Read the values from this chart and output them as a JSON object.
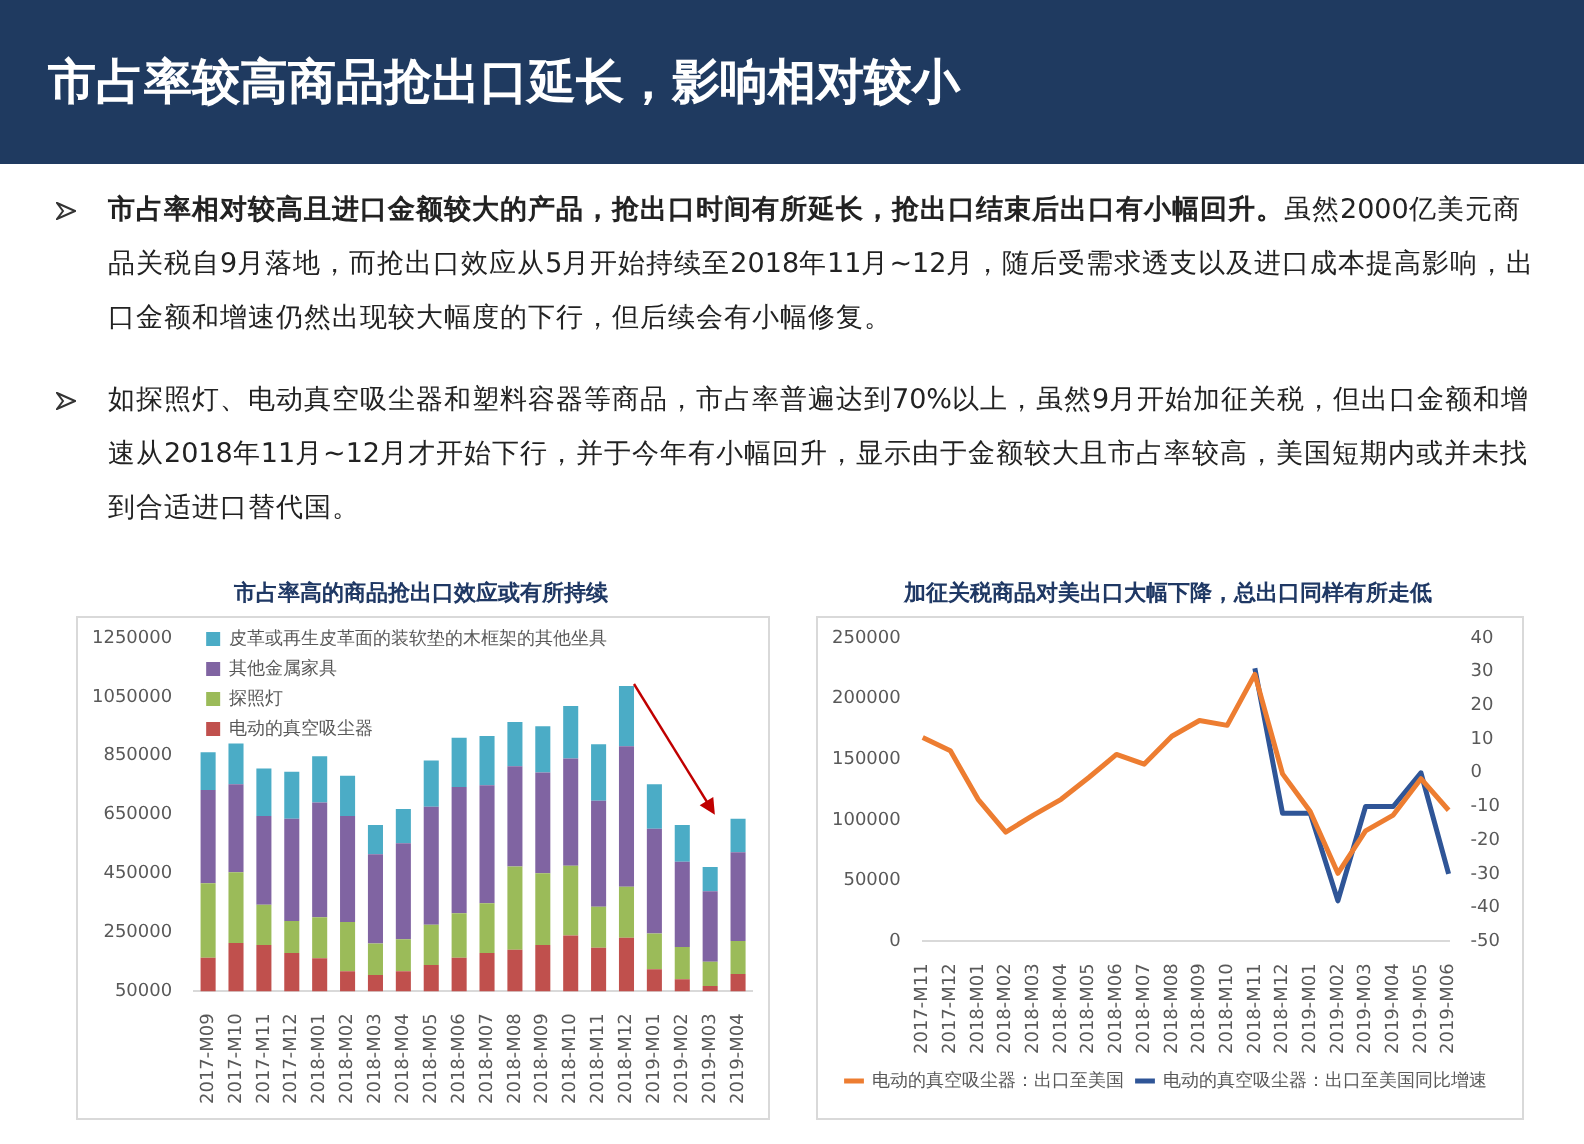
{
  "chart_data": [
    {
      "type": "other",
      "title": "市占率较高商品抢出口延长，影响相对较小",
      "annotations": [
        "市占率相对较高且进口金额较大的产品，抢出口时间有所延长，抢出口结束后出口有小幅回升。",
        "虽然2000亿美元商品关税自9月落地，而抢出口效应从5月开始持续至2018年11月~12月，随后受需求透支以及进口成本提高影响，出口金额和增速仍然出现较大幅度的下行，但后续会有小幅修复。",
        "如探照灯、电动真空吸尘器和塑料容器等商品，市占率普遍达到70%以上，虽然9月开始加征关税，但出口金额和增速从2018年11月~12月才开始下行，并于今年有小幅回升，显示由于金额较大且市占率较高，美国短期内或并未找到合适进口替代国。"
      ]
    },
    {
      "type": "bar",
      "title": "市占率高的商品抢出口效应或有所持续",
      "stacked": true,
      "grid": false,
      "legend": "top left",
      "categories": [
        "2017-M09",
        "2017-M10",
        "2017-M11",
        "2017-M12",
        "2018-M01",
        "2018-M02",
        "2018-M03",
        "2018-M04",
        "2018-M05",
        "2018-M06",
        "2018-M07",
        "2018-M08",
        "2018-M09",
        "2018-M10",
        "2018-M11",
        "2018-M12",
        "2019-M01",
        "2019-M02",
        "2019-M03",
        "2019-M04"
      ],
      "ylim": [
        50000,
        1250000
      ],
      "yticks": [
        50000,
        250000,
        450000,
        650000,
        850000,
        1050000,
        1250000
      ],
      "series": [
        {
          "name": "电动的真空吸尘器",
          "color": "#c0504d",
          "values": [
            164000,
            214000,
            207000,
            180000,
            162000,
            118000,
            105000,
            118000,
            139000,
            164000,
            180000,
            191000,
            207000,
            239000,
            198000,
            232000,
            125000,
            91000,
            68000,
            109000
          ]
        },
        {
          "name": "探照灯",
          "color": "#9bbb59",
          "values": [
            253000,
            240000,
            137000,
            109000,
            139000,
            167000,
            107000,
            109000,
            137000,
            151000,
            169000,
            283000,
            244000,
            237000,
            139000,
            173000,
            121000,
            109000,
            82000,
            112000
          ]
        },
        {
          "name": "其他金属家具",
          "color": "#8064a2",
          "values": [
            317000,
            299000,
            301000,
            347000,
            390000,
            360000,
            303000,
            326000,
            401000,
            429000,
            401000,
            340000,
            342000,
            365000,
            360000,
            477000,
            356000,
            290000,
            240000,
            301000
          ]
        },
        {
          "name": "皮革或再生皮革面的装软垫的木框架的其他坐具",
          "color": "#4bacc6",
          "values": [
            128000,
            139000,
            162000,
            160000,
            157000,
            137000,
            100000,
            116000,
            157000,
            167000,
            167000,
            151000,
            157000,
            178000,
            192000,
            205000,
            151000,
            125000,
            82000,
            114000
          ]
        }
      ]
    },
    {
      "type": "line",
      "title": "加征关税商品对美出口大幅下降，总出口同样有所走低",
      "grid": false,
      "legend": "bottom",
      "categories": [
        "2017-M11",
        "2017-M12",
        "2018-M01",
        "2018-M02",
        "2018-M03",
        "2018-M04",
        "2018-M05",
        "2018-M06",
        "2018-M07",
        "2018-M08",
        "2018-M09",
        "2018-M10",
        "2018-M11",
        "2018-M12",
        "2019-M01",
        "2019-M02",
        "2019-M03",
        "2019-M04",
        "2019-M05",
        "2019-M06"
      ],
      "ylim": [
        0,
        250000
      ],
      "yticks": [
        0,
        50000,
        100000,
        150000,
        200000,
        250000
      ],
      "y2lim": [
        -50,
        40
      ],
      "y2ticks": [
        -50,
        -40,
        -30,
        -20,
        -10,
        0,
        10,
        20,
        30,
        40
      ],
      "series": [
        {
          "name": "电动的真空吸尘器：出口至美国",
          "color": "#ed7d31",
          "values": [
            168000,
            157000,
            117000,
            90000,
            104000,
            117000,
            135000,
            154000,
            146000,
            169000,
            182000,
            178000,
            220000,
            138000,
            107000,
            56000,
            91000,
            104000,
            134000,
            108000
          ]
        },
        {
          "name": "电动的真空吸尘器：出口至美国同比增速",
          "color": "#2f5597",
          "axis": "y2",
          "values": [
            null,
            null,
            null,
            null,
            null,
            null,
            null,
            null,
            null,
            null,
            null,
            null,
            31,
            -12,
            -12,
            -38,
            -10,
            -10,
            0,
            -30
          ]
        }
      ]
    }
  ]
}
